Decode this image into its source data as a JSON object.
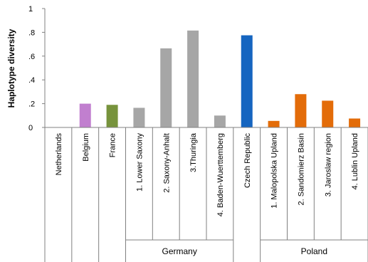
{
  "chart_data": {
    "type": "bar",
    "ylabel": "Haplotype diversity",
    "ylim": [
      0,
      1
    ],
    "yticks": [
      0,
      0.2,
      0.4,
      0.6,
      0.8,
      1
    ],
    "ytick_labels": [
      "0",
      ".2",
      ".4",
      ".6",
      ".8",
      "1"
    ],
    "grid": false,
    "categories": [
      "Netherlands",
      "Belgium",
      "France",
      "1. Lower Saxony",
      "2. Saxony-Anhalt",
      "3.Thuringia",
      "4. Baden-Wuerttemberg",
      "Czech Republic",
      "1. Malopolska Upland",
      "2. Sandomierz Basin",
      "3. Jaroslaw region",
      "4. Lublin Upland"
    ],
    "values": [
      0,
      0.2,
      0.19,
      0.165,
      0.665,
      0.815,
      0.1,
      0.775,
      0.055,
      0.28,
      0.225,
      0.075
    ],
    "colors": [
      "#a6a6a6",
      "#c17fcf",
      "#77933c",
      "#a6a6a6",
      "#a6a6a6",
      "#a6a6a6",
      "#a6a6a6",
      "#1565c0",
      "#e36c09",
      "#e36c09",
      "#e36c09",
      "#e36c09"
    ],
    "groups": [
      {
        "label": "Germany",
        "start": 3,
        "end": 6
      },
      {
        "label": "Poland",
        "start": 8,
        "end": 11
      }
    ]
  }
}
